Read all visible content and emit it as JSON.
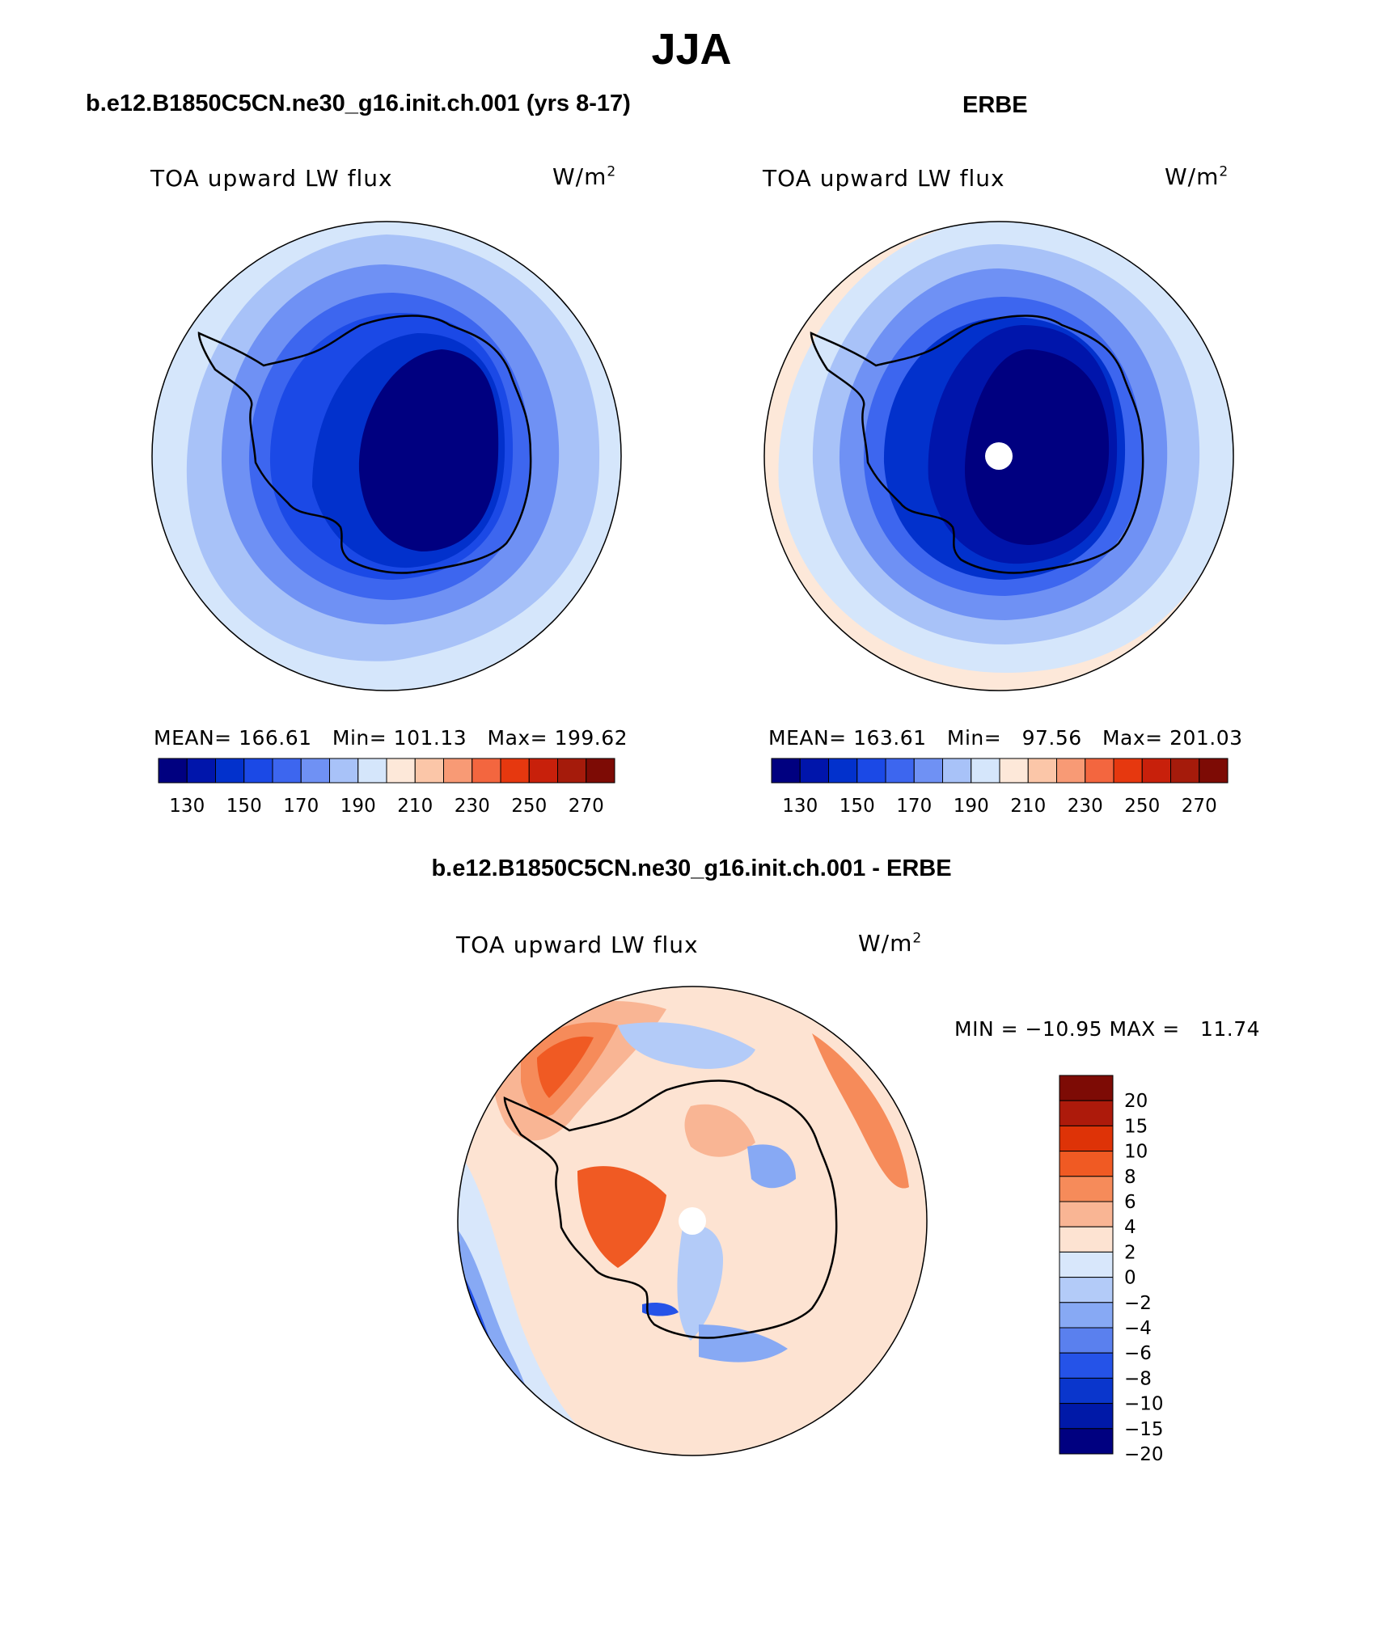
{
  "figure": {
    "title": "JJA",
    "bottom_title": "b.e12.B1850C5CN.ne30_g16.init.ch.001 - ERBE"
  },
  "panels": [
    {
      "title": "b.e12.B1850C5CN.ne30_g16.init.ch.001 (yrs 8-17)",
      "variable": "TOA upward LW flux",
      "units_base": "W/m",
      "units_sup": "2",
      "stats": {
        "mean_label": "MEAN=",
        "mean": "166.61",
        "min_label": "Min=",
        "min": "101.13",
        "max_label": "Max=",
        "max": "199.62"
      }
    },
    {
      "title": "ERBE",
      "variable": "TOA upward LW flux",
      "units_base": "W/m",
      "units_sup": "2",
      "stats": {
        "mean_label": "MEAN=",
        "mean": "163.61",
        "min_label": "Min=",
        "min": "97.56",
        "max_label": "Max=",
        "max": "201.03"
      }
    },
    {
      "title": "b.e12.B1850C5CN.ne30_g16.init.ch.001 - ERBE",
      "variable": "TOA upward LW flux",
      "units_base": "W/m",
      "units_sup": "2",
      "minmax": "MIN = −10.95 MAX =   11.74"
    }
  ],
  "colorbar_abs": {
    "colors": [
      "#000080",
      "#0015ab",
      "#0231cc",
      "#1b49e6",
      "#3d66ef",
      "#6f91f4",
      "#a8c2f8",
      "#d5e6fb",
      "#fde8d9",
      "#fbc6a8",
      "#f89a75",
      "#f3663f",
      "#e6380f",
      "#c8200b",
      "#a51b0b",
      "#7d0b05"
    ],
    "labels": [
      "130",
      "150",
      "170",
      "190",
      "210",
      "230",
      "250",
      "270"
    ]
  },
  "colorbar_diff": {
    "colors": [
      "#7d0b05",
      "#ad1a0b",
      "#de3307",
      "#f05a23",
      "#f68b5a",
      "#f9b594",
      "#fde3d2",
      "#d8e7fb",
      "#b3cbf8",
      "#87a9f4",
      "#5a80ee",
      "#2553e8",
      "#0a36cc",
      "#0019a8",
      "#000080"
    ],
    "labels": [
      "20",
      "15",
      "10",
      "8",
      "6",
      "4",
      "2",
      "0",
      "−2",
      "−4",
      "−6",
      "−8",
      "−10",
      "−15",
      "−20"
    ]
  },
  "map_colors": {
    "abs_levels": [
      "#000080",
      "#0231cc",
      "#1b49e6",
      "#3d66ef",
      "#6f91f4",
      "#a8c2f8",
      "#d5e6fb",
      "#fde8d9"
    ],
    "diff_warm": [
      "#fde3d2",
      "#f9b594",
      "#f68b5a",
      "#f05a23"
    ],
    "diff_cold": [
      "#d8e7fb",
      "#b3cbf8",
      "#87a9f4",
      "#2553e8"
    ]
  }
}
